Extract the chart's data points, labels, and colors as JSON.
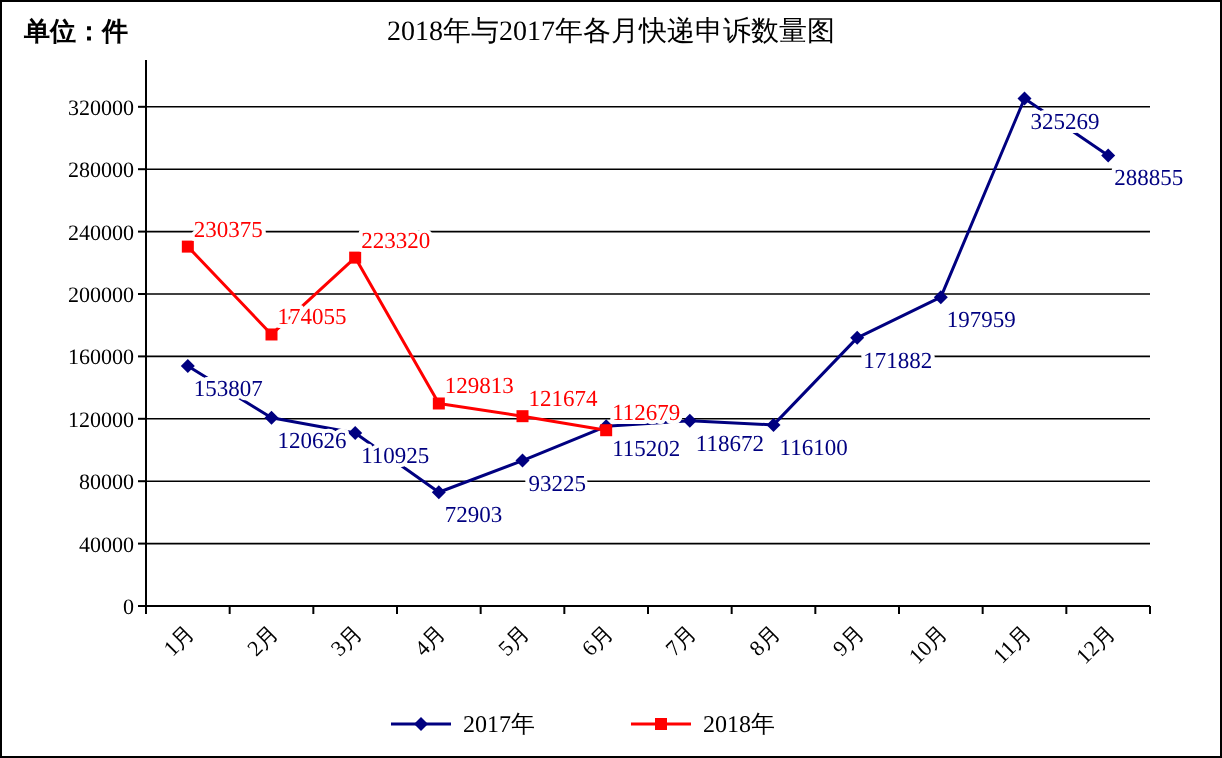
{
  "chart_data": {
    "type": "line",
    "title": "2018年与2017年各月快递申诉数量图",
    "annotations": [
      "单位：件"
    ],
    "categories": [
      "1月",
      "2月",
      "3月",
      "4月",
      "5月",
      "6月",
      "7月",
      "8月",
      "9月",
      "10月",
      "11月",
      "12月"
    ],
    "series": [
      {
        "name": "2017年",
        "color": "#000080",
        "marker": "diamond",
        "values": [
          153807,
          120626,
          110925,
          72903,
          93225,
          115202,
          118672,
          116100,
          171882,
          197959,
          325269,
          288855
        ]
      },
      {
        "name": "2018年",
        "color": "#ff0000",
        "marker": "square",
        "values": [
          230375,
          174055,
          223320,
          129813,
          121674,
          112679,
          null,
          null,
          null,
          null,
          null,
          null
        ]
      }
    ],
    "ylim": [
      0,
      350000
    ],
    "yticks": [
      0,
      40000,
      80000,
      120000,
      160000,
      200000,
      240000,
      280000,
      320000
    ],
    "grid": "y",
    "legend": "bottom",
    "data_labels": true,
    "line_style": "solid"
  }
}
